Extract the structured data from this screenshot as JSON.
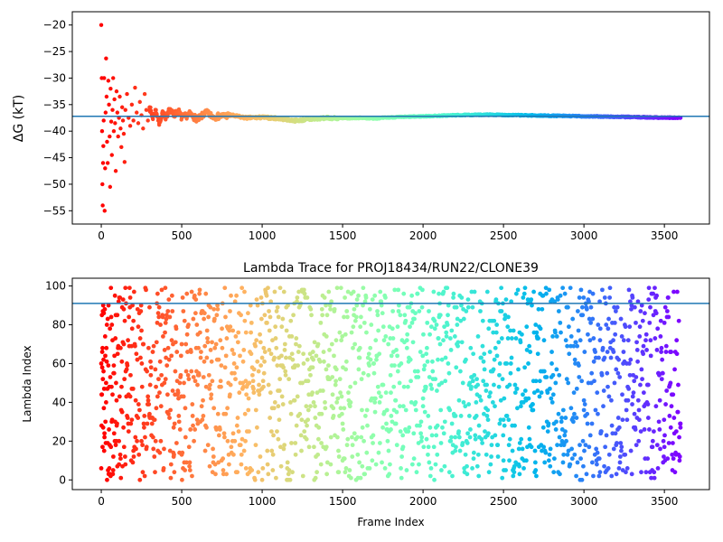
{
  "chart_data": [
    {
      "type": "scatter",
      "title": "",
      "xlabel": "",
      "ylabel": "ΔG (kT)",
      "xlim": [
        -180,
        3780
      ],
      "ylim": [
        -57.5,
        -17.5
      ],
      "xticks": [
        0,
        500,
        1000,
        1500,
        2000,
        2500,
        3000,
        3500
      ],
      "yticks": [
        -55,
        -50,
        -45,
        -40,
        -35,
        -30,
        -25,
        -20
      ],
      "hline": -37.2,
      "hline_color": "#1f77b4",
      "colormap": "rainbow (red at frame 0 to violet at frame 3600)",
      "n_frames": 3600,
      "series": [
        {
          "values": [
            [
              0,
              -20.0
            ],
            [
              3,
              -30.0
            ],
            [
              5,
              -40.0
            ],
            [
              7,
              -50.0
            ],
            [
              9,
              -54.0
            ],
            [
              11,
              -46.0
            ],
            [
              13,
              -42.8
            ],
            [
              15,
              -38.0
            ],
            [
              18,
              -30.0
            ],
            [
              21,
              -55.0
            ],
            [
              24,
              -47.0
            ],
            [
              27,
              -36.5
            ],
            [
              30,
              -26.3
            ],
            [
              33,
              -33.5
            ],
            [
              36,
              -42.0
            ],
            [
              40,
              -46.0
            ],
            [
              44,
              -30.5
            ],
            [
              48,
              -35.0
            ],
            [
              52,
              -41.0
            ],
            [
              55,
              -50.5
            ],
            [
              58,
              -32.0
            ],
            [
              62,
              -38.2
            ],
            [
              66,
              -44.5
            ],
            [
              70,
              -36.0
            ],
            [
              74,
              -30.0
            ],
            [
              78,
              -40.0
            ],
            [
              82,
              -34.0
            ],
            [
              86,
              -38.5
            ],
            [
              90,
              -47.5
            ],
            [
              95,
              -32.5
            ],
            [
              100,
              -36.5
            ],
            [
              105,
              -41.0
            ],
            [
              110,
              -37.5
            ],
            [
              115,
              -33.5
            ],
            [
              120,
              -39.5
            ],
            [
              125,
              -43.0
            ],
            [
              130,
              -35.5
            ],
            [
              135,
              -38.0
            ],
            [
              140,
              -40.5
            ],
            [
              145,
              -45.8
            ],
            [
              150,
              -36.0
            ],
            [
              160,
              -33.0
            ],
            [
              170,
              -37.5
            ],
            [
              180,
              -39.0
            ],
            [
              190,
              -35.0
            ],
            [
              200,
              -38.0
            ],
            [
              210,
              -31.8
            ],
            [
              220,
              -36.5
            ],
            [
              230,
              -38.5
            ],
            [
              240,
              -34.5
            ],
            [
              250,
              -37.0
            ],
            [
              260,
              -39.5
            ],
            [
              270,
              -33.0
            ],
            [
              280,
              -36.0
            ],
            [
              290,
              -38.0
            ],
            [
              300,
              -35.5
            ],
            [
              320,
              -37.5
            ],
            [
              340,
              -36.0
            ],
            [
              360,
              -38.5
            ],
            [
              380,
              -36.5
            ],
            [
              400,
              -37.8
            ],
            [
              420,
              -35.8
            ],
            [
              450,
              -37.0
            ],
            [
              480,
              -36.2
            ],
            [
              500,
              -37.5
            ],
            [
              550,
              -36.8
            ],
            [
              600,
              -37.8
            ],
            [
              650,
              -36.5
            ],
            [
              700,
              -37.3
            ],
            [
              800,
              -37.0
            ],
            [
              900,
              -37.5
            ],
            [
              1000,
              -37.4
            ],
            [
              1100,
              -37.6
            ],
            [
              1200,
              -38.0
            ],
            [
              1300,
              -37.8
            ],
            [
              1400,
              -37.5
            ],
            [
              1500,
              -37.6
            ],
            [
              1600,
              -37.5
            ],
            [
              1700,
              -37.6
            ],
            [
              1800,
              -37.4
            ],
            [
              1900,
              -37.3
            ],
            [
              2000,
              -37.2
            ],
            [
              2200,
              -37.0
            ],
            [
              2400,
              -36.9
            ],
            [
              2600,
              -37.0
            ],
            [
              2800,
              -37.1
            ],
            [
              3000,
              -37.2
            ],
            [
              3200,
              -37.3
            ],
            [
              3400,
              -37.4
            ],
            [
              3600,
              -37.5
            ]
          ]
        }
      ]
    },
    {
      "type": "scatter",
      "title": "Lambda Trace for PROJ18434/RUN22/CLONE39",
      "xlabel": "Frame Index",
      "ylabel": "Lambda Index",
      "xlim": [
        -180,
        3780
      ],
      "ylim": [
        -5,
        104
      ],
      "xticks": [
        0,
        500,
        1000,
        1500,
        2000,
        2500,
        3000,
        3500
      ],
      "yticks": [
        0,
        20,
        40,
        60,
        80,
        100
      ],
      "hline": 91,
      "hline_color": "#1f77b4",
      "colormap": "rainbow (red at frame 0 to violet at frame 3600)",
      "n_frames": 3600,
      "series": [
        {
          "description_of_distribution": "random walk of lambda index 0-99 across frames 0-3600, one point every ~2 frames",
          "sample_values": [
            [
              0,
              6
            ],
            [
              2,
              28
            ],
            [
              4,
              44
            ],
            [
              6,
              58
            ],
            [
              8,
              68
            ],
            [
              10,
              87
            ],
            [
              12,
              90
            ],
            [
              14,
              56
            ],
            [
              16,
              37
            ],
            [
              18,
              15
            ],
            [
              20,
              22
            ],
            [
              25,
              64
            ],
            [
              30,
              40
            ],
            [
              35,
              80
            ],
            [
              40,
              19
            ],
            [
              45,
              90
            ],
            [
              50,
              48
            ],
            [
              55,
              3
            ],
            [
              60,
              99
            ],
            [
              65,
              30
            ],
            [
              70,
              72
            ],
            [
              75,
              12
            ],
            [
              80,
              55
            ],
            [
              85,
              95
            ],
            [
              90,
              18
            ],
            [
              95,
              41
            ],
            [
              100,
              85
            ],
            [
              110,
              20
            ],
            [
              120,
              68
            ],
            [
              130,
              35
            ],
            [
              140,
              88
            ],
            [
              150,
              8
            ],
            [
              160,
              60
            ],
            [
              170,
              25
            ],
            [
              180,
              94
            ],
            [
              190,
              47
            ],
            [
              200,
              15
            ],
            [
              250,
              77
            ],
            [
              300,
              34
            ],
            [
              350,
              96
            ],
            [
              400,
              52
            ],
            [
              450,
              12
            ],
            [
              500,
              70
            ],
            [
              600,
              29
            ],
            [
              700,
              88
            ],
            [
              800,
              44
            ],
            [
              900,
              6
            ],
            [
              1000,
              63
            ],
            [
              1100,
              21
            ],
            [
              1200,
              91
            ],
            [
              1300,
              38
            ],
            [
              1400,
              74
            ],
            [
              1500,
              10
            ],
            [
              1600,
              57
            ],
            [
              1700,
              95
            ],
            [
              1800,
              26
            ],
            [
              1900,
              68
            ],
            [
              2000,
              42
            ],
            [
              2100,
              84
            ],
            [
              2200,
              15
            ],
            [
              2300,
              53
            ],
            [
              2400,
              97
            ],
            [
              2500,
              31
            ],
            [
              2600,
              76
            ],
            [
              2700,
              5
            ],
            [
              2800,
              60
            ],
            [
              2900,
              89
            ],
            [
              3000,
              36
            ],
            [
              3100,
              72
            ],
            [
              3200,
              18
            ],
            [
              3300,
              95
            ],
            [
              3400,
              49
            ],
            [
              3500,
              81
            ],
            [
              3600,
              27
            ]
          ]
        }
      ]
    }
  ]
}
